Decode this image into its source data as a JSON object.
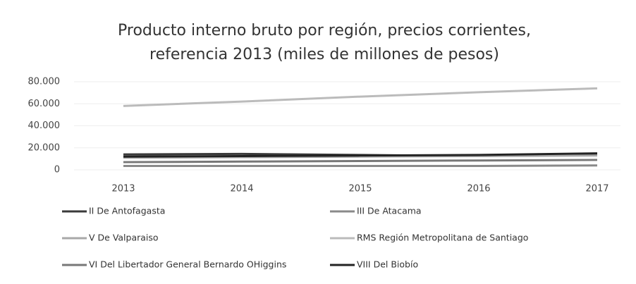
{
  "chart_data": {
    "type": "line",
    "title": [
      "Producto interno bruto por región, precios corrientes,",
      "referencia 2013 (miles de millones de pesos)"
    ],
    "categories": [
      "2013",
      "2014",
      "2015",
      "2016",
      "2017"
    ],
    "series": [
      {
        "name": "II De Antofagasta",
        "color": "#3a3a3a",
        "values": [
          14000,
          14500,
          13500,
          12500,
          14000
        ]
      },
      {
        "name": "III De Atacama",
        "color": "#8a8a8a",
        "values": [
          3500,
          3500,
          3500,
          3500,
          4000
        ]
      },
      {
        "name": "V De Valparaiso",
        "color": "#a8a8a8",
        "values": [
          11000,
          11500,
          12000,
          12500,
          13000
        ]
      },
      {
        "name": "RMS Región Metropolitana de Santiago",
        "color": "#bbbbbb",
        "values": [
          58000,
          62000,
          66500,
          70500,
          74000
        ]
      },
      {
        "name": "VI Del Libertador General Bernardo OHiggins",
        "color": "#777777",
        "values": [
          7000,
          7500,
          8000,
          8500,
          9000
        ]
      },
      {
        "name": "VIII Del Biobío",
        "color": "#222222",
        "values": [
          12000,
          12500,
          13000,
          13500,
          15000
        ]
      }
    ],
    "ylim": [
      0,
      80000
    ],
    "yticks": [
      0,
      {
        "value": 20000,
        "label": "20.000"
      },
      {
        "value": 40000,
        "label": "40.000"
      },
      {
        "value": 60000,
        "label": "60.000"
      },
      {
        "value": 80000,
        "label": "80.000"
      }
    ],
    "grid": true
  }
}
